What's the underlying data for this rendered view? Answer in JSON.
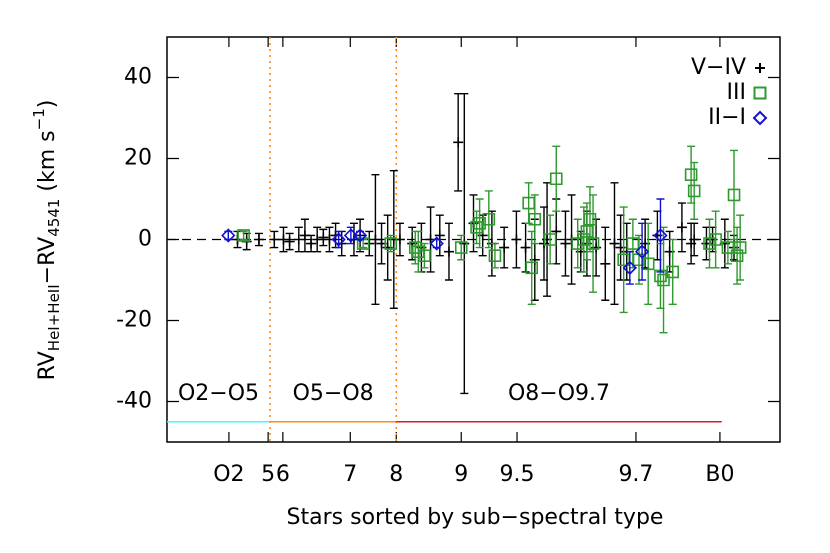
{
  "chart_data": {
    "type": "scatter",
    "x_label": "Stars sorted by sub−spectral type",
    "y_label": [
      "RV",
      "HeI+HeII",
      "−RV",
      "4541",
      " (km s",
      "−1",
      ")"
    ],
    "xlim": [
      0,
      100
    ],
    "ylim": [
      -50,
      50
    ],
    "yticks": [
      -40,
      -20,
      0,
      20,
      40
    ],
    "xticks": [
      {
        "value": 10.1,
        "label": "O2"
      },
      {
        "value": 16.5,
        "label": "5"
      },
      {
        "value": 18.9,
        "label": "6"
      },
      {
        "value": 29.9,
        "label": "7"
      },
      {
        "value": 37.4,
        "label": "8"
      },
      {
        "value": 48,
        "label": "9"
      },
      {
        "value": 57.1,
        "label": "9.5"
      },
      {
        "value": 76.5,
        "label": "9.7"
      },
      {
        "value": 90.2,
        "label": "B0"
      }
    ],
    "zero_line": 0,
    "vlines": [
      16.8,
      37.4
    ],
    "vline_color": "#ff8c1a",
    "ranges": [
      {
        "label": "O2−O5",
        "color": "#33ffff",
        "x": [
          0,
          16.8
        ],
        "y": -45
      },
      {
        "label": "O5−O8",
        "color": "#ff8c1a",
        "x": [
          16.8,
          37.4
        ],
        "y": -45
      },
      {
        "label": "O8−O9.7",
        "color": "#e8141c",
        "x": [
          37.4,
          90.5
        ],
        "y": -45
      }
    ],
    "legend": "upper right",
    "series": [
      {
        "name": "V−IV",
        "color": "#000000",
        "marker": "plus",
        "x": [
          11.5,
          13,
          15,
          17.5,
          19,
          20,
          21.5,
          22.5,
          23.5,
          24.5,
          25.5,
          26.5,
          27.5,
          28.5,
          30.5,
          31.5,
          33,
          34,
          35,
          36,
          37,
          38,
          40,
          41.5,
          43,
          44.5,
          46,
          47.5,
          48.5,
          50,
          51.5,
          53,
          55,
          57,
          58.5,
          60,
          61.5,
          62,
          63.5,
          65,
          66,
          67.5,
          68.5,
          70,
          71.5,
          73,
          74,
          75,
          78,
          80,
          82,
          84,
          85.5,
          86,
          88,
          89,
          91,
          92.5
        ],
        "values": [
          0,
          -0.5,
          0,
          0,
          0,
          -0.5,
          0,
          1,
          -1,
          0,
          0.5,
          0,
          1,
          -1,
          0,
          1,
          -1,
          0,
          -1,
          -2,
          0,
          0,
          -1,
          -2,
          0,
          1,
          -3,
          24,
          -1,
          4,
          1,
          -1,
          -2,
          0,
          -2,
          -5,
          -1,
          0,
          2,
          -1,
          0,
          -3,
          -1,
          -2,
          -6,
          -1,
          -2,
          -3,
          -1,
          1,
          -3,
          3,
          -1,
          0,
          -1,
          0,
          -1,
          -2
        ],
        "errors": [
          2,
          2,
          1.5,
          2,
          3,
          2,
          3,
          4,
          2,
          3,
          2,
          3,
          3,
          3,
          4,
          4,
          3,
          16,
          5,
          8,
          17,
          4,
          4,
          6,
          8,
          5,
          7,
          12,
          37,
          7,
          5,
          8,
          5,
          7,
          6,
          10,
          9,
          14,
          8,
          8,
          11,
          5,
          8,
          7,
          9,
          15,
          8,
          7,
          6,
          6,
          5,
          6,
          5,
          4,
          4,
          3,
          6,
          3
        ]
      },
      {
        "name": "III",
        "color": "#2e9a2e",
        "marker": "square",
        "x": [
          12.5,
          32,
          36.5,
          40.5,
          41,
          42,
          48,
          50.5,
          51,
          52.5,
          53.5,
          59,
          59.5,
          60,
          62.5,
          63.5,
          67,
          68,
          68.5,
          69,
          69.5,
          74.5,
          76,
          77,
          78.5,
          80.5,
          81,
          82.5,
          85.5,
          86,
          88.5,
          89.5,
          91.5,
          92.5,
          93,
          93.5
        ],
        "values": [
          1,
          -1,
          -1,
          -2,
          -3,
          -4,
          -2,
          3,
          4,
          5,
          -4,
          9,
          -7,
          5,
          0,
          15,
          -1,
          0,
          2,
          5,
          -1,
          -5,
          -1,
          -5,
          -6,
          -9,
          -10,
          -8,
          16,
          12,
          -1,
          0,
          -2,
          11,
          -4,
          -2
        ],
        "errors": [
          1,
          1,
          2,
          4,
          5,
          3,
          3,
          4,
          6,
          7,
          3,
          5,
          9,
          6,
          6,
          8,
          6,
          8,
          7,
          8,
          12,
          13,
          6,
          6,
          10,
          8,
          13,
          8,
          7,
          7,
          6,
          7,
          4,
          11,
          7,
          8
        ]
      },
      {
        "name": "II−I",
        "color": "#1010d0",
        "marker": "diamond",
        "x": [
          10,
          28,
          30,
          31.5,
          44,
          75.5,
          77.5,
          80.5
        ],
        "values": [
          1,
          0,
          1,
          1,
          -1,
          -7,
          -3,
          1
        ],
        "errors": [
          1,
          2,
          2,
          1,
          1,
          4,
          7,
          9
        ]
      }
    ]
  }
}
